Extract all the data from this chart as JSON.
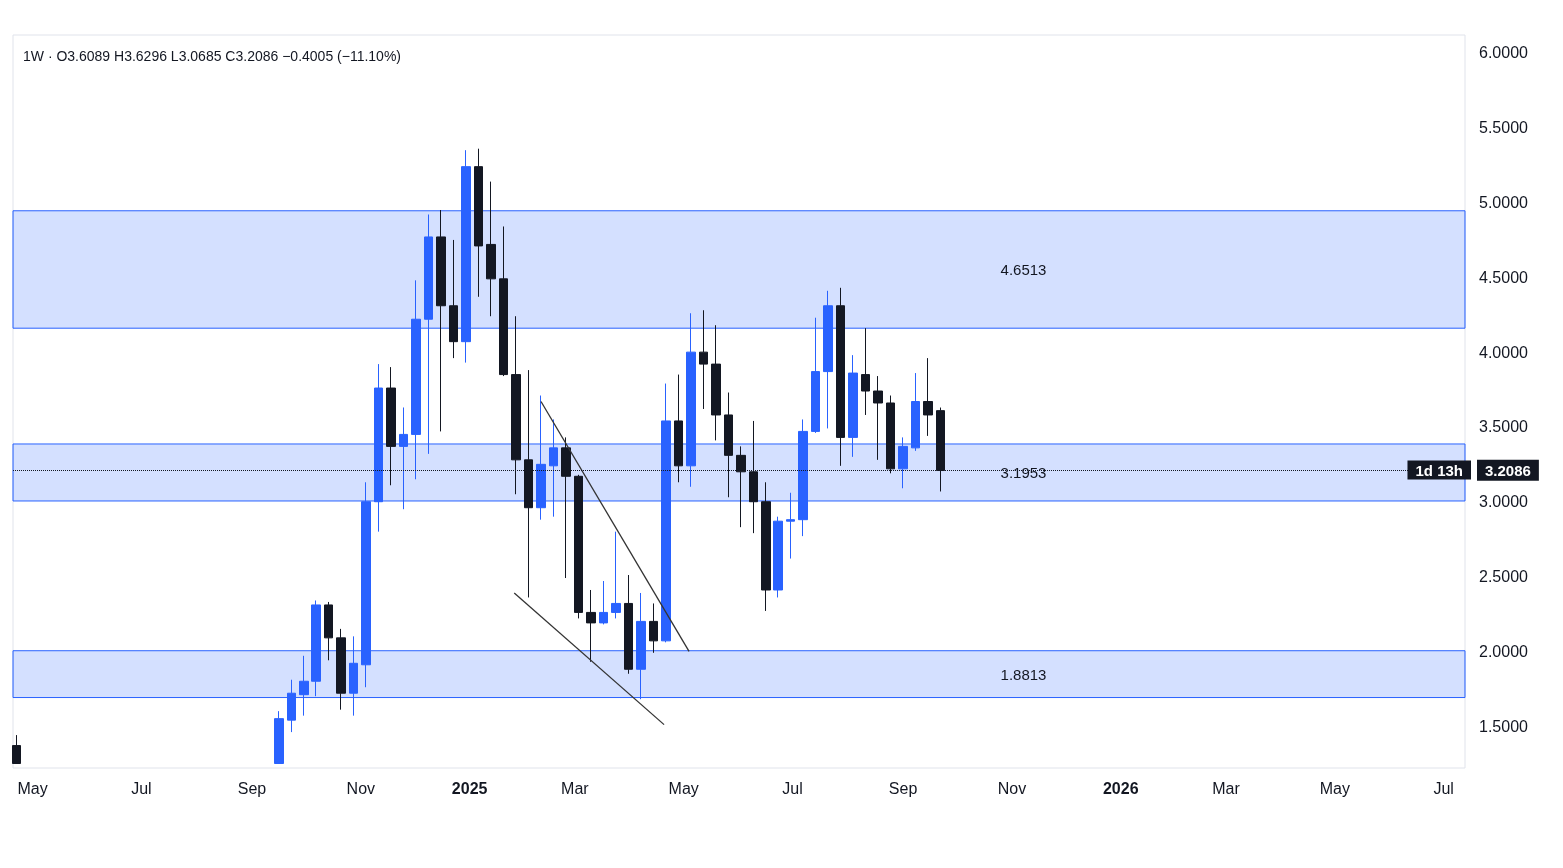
{
  "chart_data": {
    "type": "candlestick",
    "title": "1W · O3.6089 H3.6296 L3.0685 C3.2086 −0.4005 (−11.10%)",
    "x": [
      "2024-04-22",
      "2024-09-16",
      "2024-09-23",
      "2024-09-30",
      "2024-10-07",
      "2024-10-14",
      "2024-10-21",
      "2024-10-28",
      "2024-11-04",
      "2024-11-11",
      "2024-11-18",
      "2024-11-25",
      "2024-12-02",
      "2024-12-09",
      "2024-12-16",
      "2024-12-23",
      "2024-12-30",
      "2025-01-06",
      "2025-01-13",
      "2025-01-20",
      "2025-01-27",
      "2025-02-03",
      "2025-02-10",
      "2025-02-17",
      "2025-02-24",
      "2025-03-03",
      "2025-03-10",
      "2025-03-17",
      "2025-03-24",
      "2025-03-31",
      "2025-04-07",
      "2025-04-14",
      "2025-04-21",
      "2025-04-28",
      "2025-05-05",
      "2025-05-12",
      "2025-05-19",
      "2025-05-26",
      "2025-06-02",
      "2025-06-09",
      "2025-06-16",
      "2025-06-23",
      "2025-06-30",
      "2025-07-07",
      "2025-07-14",
      "2025-07-21",
      "2025-07-28",
      "2025-08-04",
      "2025-08-11",
      "2025-08-18",
      "2025-08-25",
      "2025-09-01",
      "2025-09-08",
      "2025-09-15",
      "2025-09-22"
    ],
    "ohlc": [
      [
        1.37,
        1.44,
        1.25,
        1.25
      ],
      [
        1.25,
        1.6,
        1.25,
        1.55
      ],
      [
        1.54,
        1.81,
        1.46,
        1.72
      ],
      [
        1.71,
        1.97,
        1.57,
        1.8
      ],
      [
        1.8,
        2.34,
        1.7,
        2.31
      ],
      [
        2.31,
        2.33,
        1.94,
        2.09
      ],
      [
        2.09,
        2.15,
        1.61,
        1.72
      ],
      [
        1.72,
        2.1,
        1.57,
        1.92
      ],
      [
        1.91,
        3.13,
        1.76,
        3.0
      ],
      [
        3.0,
        3.92,
        2.8,
        3.76
      ],
      [
        3.76,
        3.9,
        3.11,
        3.37
      ],
      [
        3.37,
        3.63,
        2.95,
        3.45
      ],
      [
        3.45,
        4.48,
        3.15,
        4.22
      ],
      [
        4.22,
        4.92,
        3.32,
        4.77
      ],
      [
        4.77,
        4.95,
        3.47,
        4.31
      ],
      [
        4.31,
        4.75,
        3.96,
        4.07
      ],
      [
        4.07,
        5.35,
        3.93,
        5.24
      ],
      [
        5.24,
        5.36,
        4.37,
        4.71
      ],
      [
        4.72,
        5.14,
        4.24,
        4.49
      ],
      [
        4.49,
        4.84,
        3.84,
        3.85
      ],
      [
        3.85,
        4.24,
        3.05,
        3.28
      ],
      [
        3.28,
        3.88,
        2.36,
        2.96
      ],
      [
        2.96,
        3.71,
        2.88,
        3.25
      ],
      [
        3.24,
        3.55,
        2.9,
        3.36
      ],
      [
        3.36,
        3.43,
        2.49,
        3.17
      ],
      [
        3.17,
        3.18,
        2.22,
        2.26
      ],
      [
        2.26,
        2.41,
        1.93,
        2.19
      ],
      [
        2.19,
        2.47,
        2.18,
        2.26
      ],
      [
        2.26,
        2.8,
        2.22,
        2.32
      ],
      [
        2.32,
        2.51,
        1.85,
        1.88
      ],
      [
        1.88,
        2.39,
        1.68,
        2.2
      ],
      [
        2.2,
        2.32,
        1.99,
        2.07
      ],
      [
        2.07,
        3.79,
        2.06,
        3.54
      ],
      [
        3.54,
        3.85,
        3.13,
        3.24
      ],
      [
        3.24,
        4.26,
        3.1,
        4.0
      ],
      [
        4.0,
        4.28,
        3.62,
        3.92
      ],
      [
        3.92,
        4.18,
        3.41,
        3.58
      ],
      [
        3.58,
        3.73,
        3.03,
        3.31
      ],
      [
        3.31,
        3.37,
        2.83,
        3.2
      ],
      [
        3.2,
        3.54,
        2.79,
        3.0
      ],
      [
        3.0,
        3.13,
        2.27,
        2.41
      ],
      [
        2.41,
        2.9,
        2.36,
        2.87
      ],
      [
        2.87,
        3.06,
        2.62,
        2.88
      ],
      [
        2.88,
        3.55,
        2.77,
        3.47
      ],
      [
        3.47,
        4.23,
        3.46,
        3.87
      ],
      [
        3.87,
        4.41,
        3.49,
        4.31
      ],
      [
        4.31,
        4.43,
        3.24,
        3.43
      ],
      [
        3.43,
        3.98,
        3.3,
        3.86
      ],
      [
        3.85,
        4.16,
        3.58,
        3.74
      ],
      [
        3.74,
        3.84,
        3.28,
        3.66
      ],
      [
        3.66,
        3.71,
        3.19,
        3.22
      ],
      [
        3.22,
        3.43,
        3.09,
        3.37
      ],
      [
        3.36,
        3.86,
        3.34,
        3.67
      ],
      [
        3.67,
        3.96,
        3.44,
        3.58
      ],
      [
        3.6089,
        3.6296,
        3.0685,
        3.2086
      ]
    ],
    "colors": [
      "#131722",
      "#2962ff",
      "#2962ff",
      "#2962ff",
      "#2962ff",
      "#131722",
      "#131722",
      "#2962ff",
      "#2962ff",
      "#2962ff",
      "#131722",
      "#2962ff",
      "#2962ff",
      "#2962ff",
      "#131722",
      "#131722",
      "#2962ff",
      "#131722",
      "#131722",
      "#131722",
      "#131722",
      "#131722",
      "#2962ff",
      "#2962ff",
      "#131722",
      "#131722",
      "#131722",
      "#2962ff",
      "#2962ff",
      "#131722",
      "#2962ff",
      "#131722",
      "#2962ff",
      "#131722",
      "#2962ff",
      "#131722",
      "#131722",
      "#131722",
      "#131722",
      "#131722",
      "#131722",
      "#2962ff",
      "#2962ff",
      "#2962ff",
      "#2962ff",
      "#2962ff",
      "#131722",
      "#2962ff",
      "#131722",
      "#131722",
      "#131722",
      "#2962ff",
      "#2962ff",
      "#131722",
      "#131722"
    ],
    "series": [
      {
        "type": "line",
        "x": [
          "2025-02-10",
          "2025-05-04"
        ],
        "values": [
          3.67,
          2.0
        ],
        "color": "#333333"
      },
      {
        "type": "line",
        "x": [
          "2025-01-26",
          "2025-04-20"
        ],
        "values": [
          2.39,
          1.51
        ],
        "color": "#333333"
      }
    ],
    "bands": [
      {
        "axis": "y",
        "from": 4.16,
        "to": 4.945,
        "label": "4.6513",
        "color": "#2962ff"
      },
      {
        "axis": "y",
        "from": 3.005,
        "to": 3.386,
        "label": "3.1953",
        "color": "#2962ff"
      },
      {
        "axis": "y",
        "from": 1.691,
        "to": 2.004,
        "label": "1.8813",
        "color": "#2962ff"
      }
    ],
    "ref_lines": [
      {
        "axis": "y",
        "value": 3.2086,
        "label": "3.2086",
        "color": "#131722",
        "line_style": "dotted"
      }
    ],
    "annotations": [
      "1d 13h"
    ],
    "xlim": [
      "2024-04-20",
      "2026-07-13"
    ],
    "xticks": [
      {
        "value": "2024-05-01",
        "label": "May"
      },
      {
        "value": "2024-07-01",
        "label": "Jul"
      },
      {
        "value": "2024-09-01",
        "label": "Sep"
      },
      {
        "value": "2024-11-01",
        "label": "Nov"
      },
      {
        "value": "2025-01-01",
        "label": "2025"
      },
      {
        "value": "2025-03-01",
        "label": "Mar"
      },
      {
        "value": "2025-05-01",
        "label": "May"
      },
      {
        "value": "2025-07-01",
        "label": "Jul"
      },
      {
        "value": "2025-09-01",
        "label": "Sep"
      },
      {
        "value": "2025-11-01",
        "label": "Nov"
      },
      {
        "value": "2026-01-01",
        "label": "2026"
      },
      {
        "value": "2026-03-01",
        "label": "Mar"
      },
      {
        "value": "2026-05-01",
        "label": "May"
      },
      {
        "value": "2026-07-01",
        "label": "Jul"
      }
    ],
    "ylim": [
      1.22,
      6.12
    ],
    "yticks": [
      {
        "value": 1.5,
        "label": "1.5000"
      },
      {
        "value": 2,
        "label": "2.0000"
      },
      {
        "value": 2.5,
        "label": "2.5000"
      },
      {
        "value": 3,
        "label": "3.0000"
      },
      {
        "value": 3.5,
        "label": "3.5000"
      },
      {
        "value": 4,
        "label": "4.0000"
      },
      {
        "value": 4.5,
        "label": "4.5000"
      },
      {
        "value": 5,
        "label": "5.0000"
      },
      {
        "value": 5.5,
        "label": "5.5000"
      },
      {
        "value": 6,
        "label": "6.0000"
      }
    ],
    "grid": false
  }
}
